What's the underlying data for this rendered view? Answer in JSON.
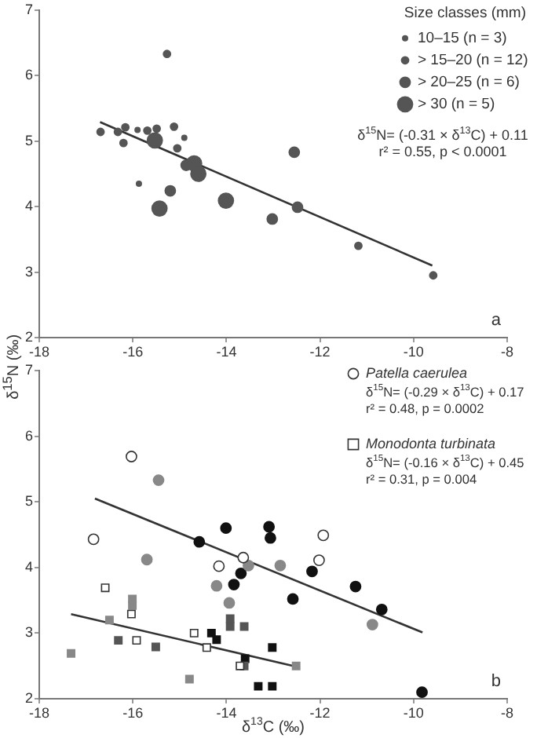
{
  "chart_data": [
    {
      "type": "scatter",
      "ylabel": "δ$^{15}$N (‰)",
      "legend_title": "Size classes (mm)",
      "xlim": [
        -18,
        -8
      ],
      "xticks": [
        -18,
        -16,
        -14,
        -12,
        -10,
        -8
      ],
      "ylim": [
        2,
        7
      ],
      "yticks": [
        2,
        3,
        4,
        5,
        6,
        7
      ],
      "grid": false,
      "legend": "top right",
      "marker": "circle",
      "annotations": [
        "δ$^{15}$N= (-0.31 × δ$^{13}$C) + 0.11",
        "r² = 0.55, p < 0.0001",
        "a"
      ],
      "series": [
        {
          "name": "10–15 (n = 3)",
          "color": "#555555",
          "x": [
            -15.9,
            -14.9,
            -15.87
          ],
          "values": [
            5.17,
            5.05,
            4.35
          ]
        },
        {
          "name": "> 15–20 (n = 12)",
          "color": "#555555",
          "x": [
            -15.27,
            -16.69,
            -16.32,
            -16.16,
            -16.2,
            -15.69,
            -15.49,
            -15.12,
            -15.05,
            -11.18,
            -9.58
          ],
          "values": [
            6.33,
            5.14,
            5.14,
            5.21,
            4.97,
            5.16,
            5.19,
            5.22,
            4.89,
            3.4,
            2.95
          ]
        },
        {
          "name": "> 20–25 (n = 6)",
          "color": "#555555",
          "x": [
            -15.2,
            -12.55,
            -12.48,
            -13.02,
            -14.86
          ],
          "values": [
            4.24,
            4.83,
            3.99,
            3.81,
            4.63
          ]
        },
        {
          "name": "> 30 (n = 5)",
          "color": "#555555",
          "x": [
            -15.53,
            -15.43,
            -14.01,
            -14.69,
            -14.6
          ],
          "values": [
            5.01,
            3.97,
            4.09,
            4.66,
            4.5
          ]
        },
        {
          "type": "line",
          "color": "#333333",
          "marker": "none",
          "x": [
            -16.7,
            -9.6
          ],
          "values": [
            5.29,
            3.1
          ]
        }
      ]
    },
    {
      "type": "scatter",
      "xlabel": "δ$^{13}$C (‰)",
      "xlim": [
        -18,
        -8
      ],
      "xticks": [
        -18,
        -16,
        -14,
        -12,
        -10,
        -8
      ],
      "ylim": [
        2,
        7
      ],
      "yticks": [
        2,
        3,
        4,
        5,
        6,
        7
      ],
      "grid": false,
      "legend": "top right",
      "annotations": [
        "δ$^{15}$N= (-0.29 × δ$^{13}$C) + 0.17",
        "r² = 0.48, p = 0.0002",
        "δ$^{15}$N= (-0.16 × δ$^{13}$C) + 0.45",
        "r² = 0.31, p = 0.004",
        "b"
      ],
      "series": [
        {
          "name": "Patella caerulea",
          "color": "#ffffff",
          "marker": "circle",
          "x": [
            -16.03,
            -16.84,
            -13.64,
            -14.16,
            -11.93,
            -12.02
          ],
          "values": [
            5.69,
            4.43,
            4.15,
            4.02,
            4.49,
            4.11
          ]
        },
        {
          "color": "#888888",
          "marker": "circle",
          "x": [
            -15.45,
            -15.7,
            -13.53,
            -12.85,
            -14.21,
            -13.94,
            -10.88
          ],
          "values": [
            5.33,
            4.12,
            4.03,
            4.03,
            3.72,
            3.46,
            3.13
          ]
        },
        {
          "color": "#111111",
          "marker": "circle",
          "x": [
            -14.58,
            -14.01,
            -13.09,
            -13.06,
            -13.69,
            -13.84,
            -12.17,
            -12.58,
            -11.24,
            -10.68,
            -9.82
          ],
          "values": [
            4.39,
            4.6,
            4.62,
            4.45,
            3.91,
            3.74,
            3.94,
            3.52,
            3.71,
            3.36,
            2.1
          ]
        },
        {
          "name": "Monodonta turbinata",
          "color": "#ffffff",
          "marker": "square",
          "x": [
            -16.59,
            -16.03,
            -15.92,
            -14.69,
            -14.42,
            -13.71
          ],
          "values": [
            3.69,
            3.29,
            2.89,
            3.0,
            2.78,
            2.5
          ]
        },
        {
          "color": "#888888",
          "marker": "square",
          "x": [
            -16.5,
            -17.32,
            -14.79,
            -16.01,
            -16.01,
            -12.51
          ],
          "values": [
            3.2,
            2.69,
            2.3,
            3.52,
            3.42,
            2.5
          ]
        },
        {
          "color": "#555555",
          "marker": "square",
          "x": [
            -16.31,
            -15.51,
            -13.92,
            -13.92,
            -13.62,
            -13.62
          ],
          "values": [
            2.89,
            2.79,
            3.22,
            3.1,
            3.1,
            2.5
          ]
        },
        {
          "color": "#111111",
          "marker": "square",
          "x": [
            -14.32,
            -14.21,
            -13.02,
            -13.6,
            -13.32,
            -13.02
          ],
          "values": [
            3.0,
            2.9,
            2.78,
            2.61,
            2.19,
            2.19
          ]
        },
        {
          "type": "line",
          "color": "#333333",
          "marker": "none",
          "x": [
            -16.81,
            -9.81
          ],
          "values": [
            5.05,
            3.01
          ]
        },
        {
          "type": "line",
          "color": "#333333",
          "marker": "none",
          "x": [
            -17.32,
            -12.57
          ],
          "values": [
            3.29,
            2.5
          ]
        }
      ]
    }
  ]
}
